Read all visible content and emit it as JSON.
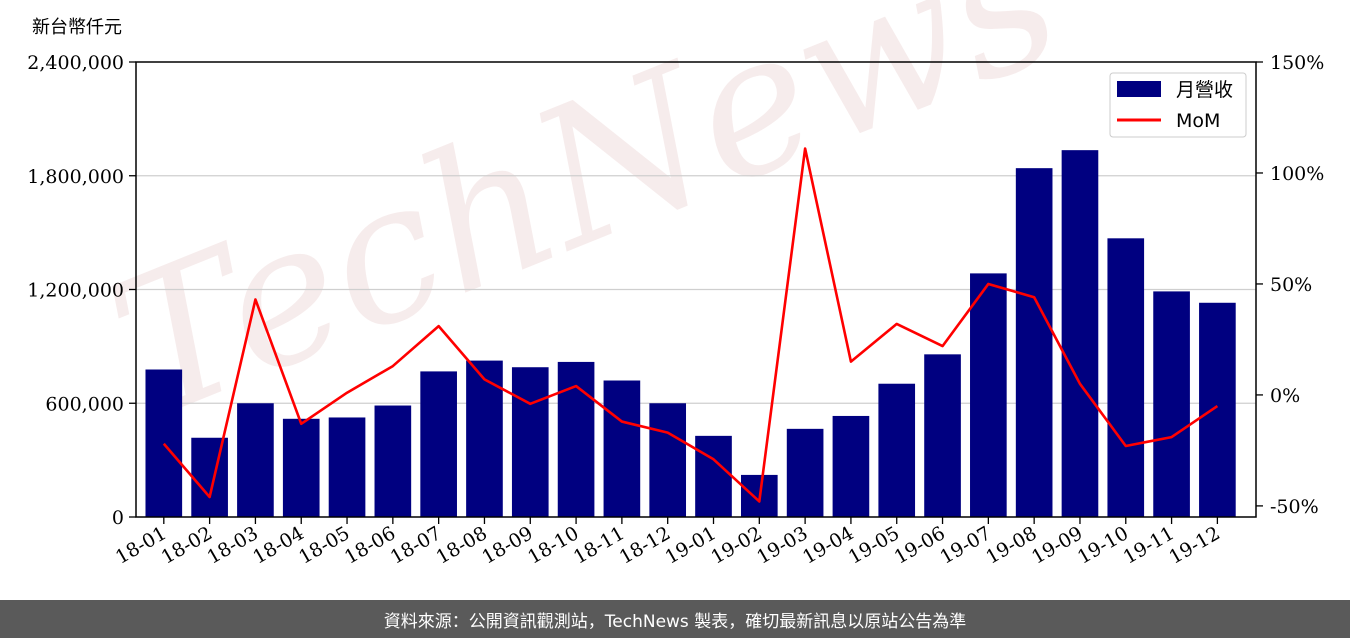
{
  "chart_data": {
    "type": "bar",
    "ylabel": "新台幣仟元",
    "watermark": "TechNews",
    "categories": [
      "18-01",
      "18-02",
      "18-03",
      "18-04",
      "18-05",
      "18-06",
      "18-07",
      "18-08",
      "18-09",
      "18-10",
      "18-11",
      "18-12",
      "19-01",
      "19-02",
      "19-03",
      "19-04",
      "19-05",
      "19-06",
      "19-07",
      "19-08",
      "19-09",
      "19-10",
      "19-11",
      "19-12"
    ],
    "series": [
      {
        "name": "月營收",
        "axis": "left",
        "color": "#000080",
        "values": [
          778000,
          418000,
          600000,
          518000,
          525000,
          588000,
          768000,
          825000,
          790000,
          818000,
          720000,
          600000,
          428000,
          222000,
          465000,
          533000,
          703000,
          858000,
          1285000,
          1840000,
          1935000,
          1470000,
          1190000,
          1130000
        ]
      },
      {
        "name": "MoM",
        "axis": "right",
        "color": "#ff0000",
        "values": [
          -22,
          -46,
          43,
          -13,
          1,
          13,
          31,
          7,
          -4,
          4,
          -12,
          -17,
          -29,
          -48,
          111,
          15,
          32,
          22,
          50,
          44,
          5,
          -23,
          -19,
          -5
        ]
      }
    ],
    "y_left": {
      "range": [
        0,
        2400000
      ],
      "ticks": [
        "0",
        "600,000",
        "1,200,000",
        "1,800,000",
        "2,400,000"
      ],
      "tick_values": [
        0,
        600000,
        1200000,
        1800000,
        2400000
      ]
    },
    "y_right": {
      "range": [
        -55,
        150
      ],
      "ticks": [
        "-50%",
        "0%",
        "50%",
        "100%",
        "150%"
      ],
      "tick_values": [
        -50,
        0,
        50,
        100,
        150
      ]
    },
    "grid": "horizontal",
    "legend": "top-right"
  },
  "footer": {
    "source": "資料來源：公開資訊觀測站，TechNews 製表，確切最新訊息以原站公告為準"
  }
}
